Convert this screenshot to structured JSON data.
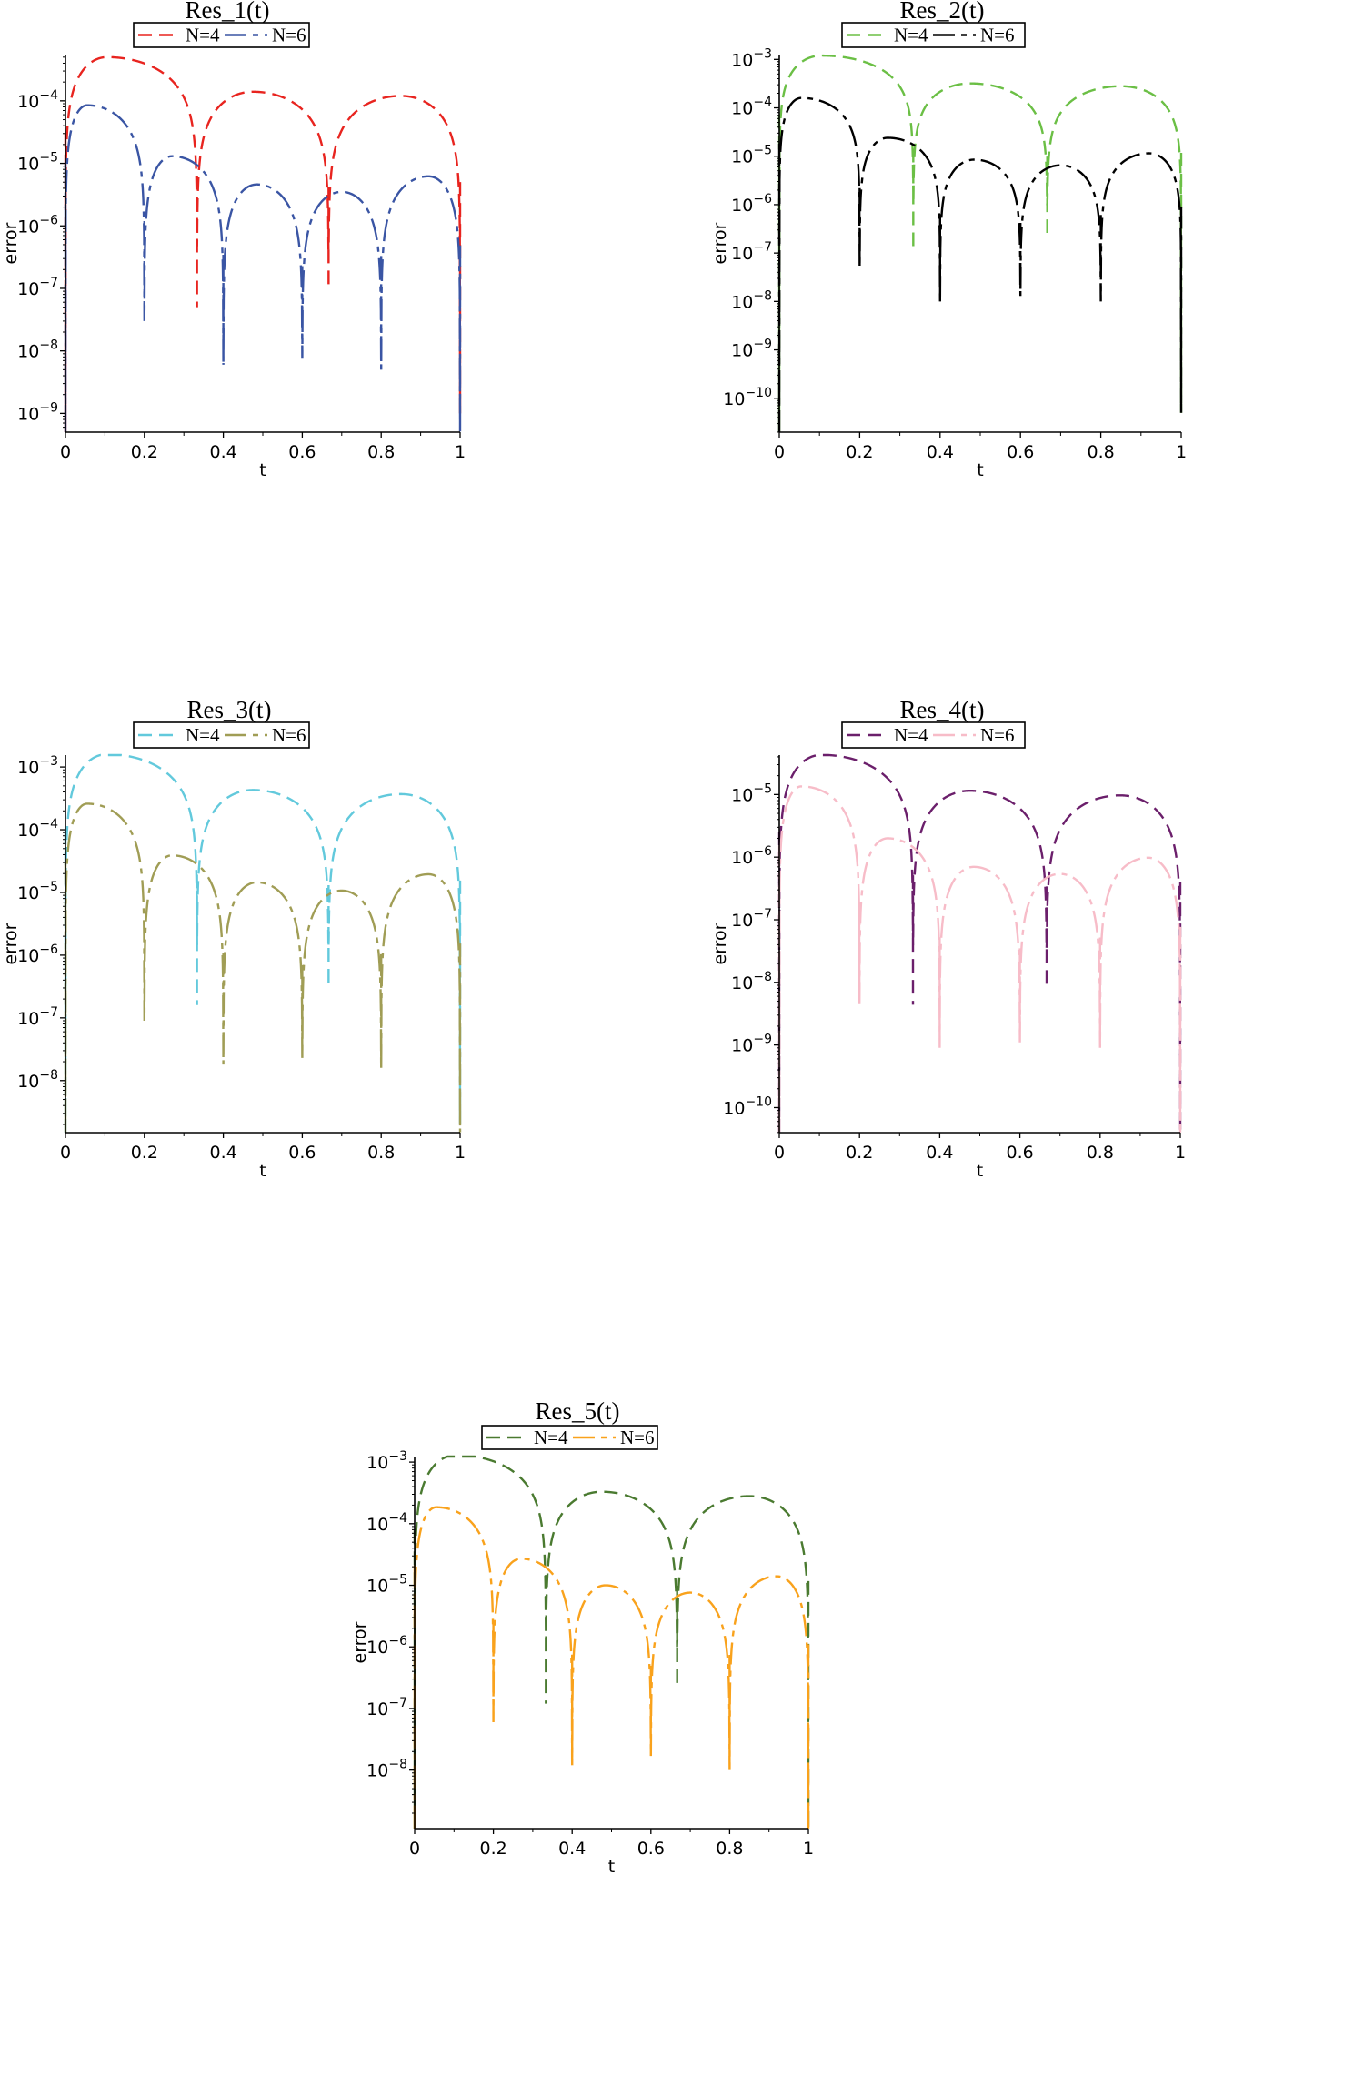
{
  "chart_data": [
    {
      "type": "line",
      "title": "Res_1(t)",
      "xlabel": "t",
      "ylabel": "error",
      "yscale": "log",
      "xlim": [
        0,
        1
      ],
      "ylim": [
        5e-10,
        0.00055
      ],
      "xticks": [
        "0",
        "0.2",
        "0.4",
        "0.6",
        "0.8",
        "1"
      ],
      "yticks_exponents": [
        "-4",
        "-5",
        "-6",
        "-7",
        "-8",
        "-9"
      ],
      "legend_position": "top-center",
      "series": [
        {
          "name": "N=4",
          "color": "#e8241f",
          "style": "dash",
          "zeros": [
            [
              0,
              5e-10
            ],
            [
              0.3333,
              5e-08
            ],
            [
              0.6667,
              1e-07
            ],
            [
              1,
              1e-09
            ]
          ],
          "peaks": [
            [
              0.105,
              0.0005
            ],
            [
              0.475,
              0.00014
            ],
            [
              0.85,
              0.00012
            ]
          ]
        },
        {
          "name": "N=6",
          "color": "#3a55a4",
          "style": "dash-dot",
          "zeros": [
            [
              0,
              5e-10
            ],
            [
              0.2,
              3e-08
            ],
            [
              0.4,
              6e-09
            ],
            [
              0.6,
              7.5e-09
            ],
            [
              0.8,
              5e-09
            ],
            [
              1,
              5e-10
            ]
          ],
          "peaks": [
            [
              0.055,
              8.5e-05
            ],
            [
              0.27,
              1.3e-05
            ],
            [
              0.485,
              4.6e-06
            ],
            [
              0.7,
              3.5e-06
            ],
            [
              0.92,
              6.2e-06
            ]
          ]
        }
      ]
    },
    {
      "type": "line",
      "title": "Res_2(t)",
      "xlabel": "t",
      "ylabel": "error",
      "yscale": "log",
      "xlim": [
        0,
        1
      ],
      "ylim": [
        2e-11,
        0.0013
      ],
      "xticks": [
        "0",
        "0.2",
        "0.4",
        "0.6",
        "0.8",
        "1"
      ],
      "yticks_exponents": [
        "-3",
        "-4",
        "-5",
        "-6",
        "-7",
        "-8",
        "-9",
        "-10"
      ],
      "legend_position": "top-center",
      "series": [
        {
          "name": "N=4",
          "color": "#6bbf45",
          "style": "dash",
          "zeros": [
            [
              0,
              2e-11
            ],
            [
              0.3333,
              1.3e-07
            ],
            [
              0.6667,
              2.6e-07
            ],
            [
              1,
              5e-11
            ]
          ],
          "peaks": [
            [
              0.105,
              0.0012
            ],
            [
              0.475,
              0.00032
            ],
            [
              0.85,
              0.00028
            ]
          ]
        },
        {
          "name": "N=6",
          "color": "#000000",
          "style": "dash-dot",
          "zeros": [
            [
              0,
              2e-11
            ],
            [
              0.2,
              5e-08
            ],
            [
              0.4,
              1e-08
            ],
            [
              0.6,
              1.3e-08
            ],
            [
              0.8,
              1e-08
            ],
            [
              1,
              5e-11
            ]
          ],
          "peaks": [
            [
              0.055,
              0.00016
            ],
            [
              0.27,
              2.4e-05
            ],
            [
              0.485,
              8.5e-06
            ],
            [
              0.7,
              6.5e-06
            ],
            [
              0.92,
              1.15e-05
            ]
          ]
        }
      ]
    },
    {
      "type": "line",
      "title": "Res_3(t)",
      "xlabel": "t",
      "ylabel": "error",
      "yscale": "log",
      "xlim": [
        0,
        1
      ],
      "ylim": [
        1.5e-09,
        0.0017
      ],
      "xticks": [
        "0",
        "0.2",
        "0.4",
        "0.6",
        "0.8",
        "1"
      ],
      "yticks_exponents": [
        "-3",
        "-4",
        "-5",
        "-6",
        "-7",
        "-8"
      ],
      "legend_position": "top-center",
      "series": [
        {
          "name": "N=4",
          "color": "#62c9dc",
          "style": "dash",
          "zeros": [
            [
              0,
              1e-09
            ],
            [
              0.3333,
              1.6e-07
            ],
            [
              0.6667,
              3.6e-07
            ],
            [
              1,
              2e-09
            ]
          ],
          "peaks": [
            [
              0.105,
              0.0016
            ],
            [
              0.475,
              0.00043
            ],
            [
              0.85,
              0.00037
            ]
          ]
        },
        {
          "name": "N=6",
          "color": "#a09d55",
          "style": "dash-dot",
          "zeros": [
            [
              0,
              1.5e-09
            ],
            [
              0.2,
              9e-08
            ],
            [
              0.4,
              1.8e-08
            ],
            [
              0.6,
              2.3e-08
            ],
            [
              0.8,
              1.6e-08
            ],
            [
              1,
              1.5e-09
            ]
          ],
          "peaks": [
            [
              0.055,
              0.00026
            ],
            [
              0.27,
              3.9e-05
            ],
            [
              0.485,
              1.45e-05
            ],
            [
              0.7,
              1.07e-05
            ],
            [
              0.92,
              1.95e-05
            ]
          ]
        }
      ]
    },
    {
      "type": "line",
      "title": "Res_4(t)",
      "xlabel": "t",
      "ylabel": "error",
      "yscale": "log",
      "xlim": [
        0,
        1
      ],
      "ylim": [
        4e-11,
        4.5e-05
      ],
      "xticks": [
        "0",
        "0.2",
        "0.4",
        "0.6",
        "0.8",
        "1"
      ],
      "yticks_exponents": [
        "-5",
        "-6",
        "-7",
        "-8",
        "-9",
        "-10"
      ],
      "legend_position": "top-center",
      "series": [
        {
          "name": "N=4",
          "color": "#6b1f6b",
          "style": "dash",
          "zeros": [
            [
              0,
              4e-11
            ],
            [
              0.3333,
              4.4e-09
            ],
            [
              0.6667,
              9e-09
            ],
            [
              1,
              4e-11
            ]
          ],
          "peaks": [
            [
              0.105,
              4.3e-05
            ],
            [
              0.475,
              1.15e-05
            ],
            [
              0.85,
              9.7e-06
            ]
          ]
        },
        {
          "name": "N=6",
          "color": "#f7bcc8",
          "style": "dash-dot",
          "zeros": [
            [
              0,
              4e-11
            ],
            [
              0.2,
              4.5e-09
            ],
            [
              0.4,
              9e-10
            ],
            [
              0.6,
              1.1e-09
            ],
            [
              0.8,
              9e-10
            ],
            [
              1,
              4e-11
            ]
          ],
          "peaks": [
            [
              0.055,
              1.35e-05
            ],
            [
              0.27,
              2e-06
            ],
            [
              0.485,
              7e-07
            ],
            [
              0.7,
              5.4e-07
            ],
            [
              0.92,
              9.8e-07
            ]
          ]
        }
      ]
    },
    {
      "type": "line",
      "title": "Res_5(t)",
      "xlabel": "t",
      "ylabel": "error",
      "yscale": "log",
      "xlim": [
        0,
        1
      ],
      "ylim": [
        1.1e-09,
        0.0013
      ],
      "xticks": [
        "0",
        "0.2",
        "0.4",
        "0.6",
        "0.8",
        "1"
      ],
      "yticks_exponents": [
        "-3",
        "-4",
        "-5",
        "-6",
        "-7",
        "-8"
      ],
      "legend_position": "top-center",
      "series": [
        {
          "name": "N=4",
          "color": "#4a7a30",
          "style": "dash",
          "zeros": [
            [
              0,
              1.1e-09
            ],
            [
              0.3333,
              1.2e-07
            ],
            [
              0.6667,
              2.6e-07
            ],
            [
              1,
              1.1e-09
            ]
          ],
          "peaks": [
            [
              0.105,
              0.0013
            ],
            [
              0.475,
              0.00033
            ],
            [
              0.85,
              0.00028
            ]
          ]
        },
        {
          "name": "N=6",
          "color": "#f9a21c",
          "style": "dash-dot",
          "zeros": [
            [
              0,
              1.1e-09
            ],
            [
              0.2,
              6e-08
            ],
            [
              0.4,
              1.2e-08
            ],
            [
              0.6,
              1.7e-08
            ],
            [
              0.8,
              1e-08
            ],
            [
              1,
              1.1e-09
            ]
          ],
          "peaks": [
            [
              0.055,
              0.000185
            ],
            [
              0.27,
              2.7e-05
            ],
            [
              0.485,
              1e-05
            ],
            [
              0.7,
              7.6e-06
            ],
            [
              0.92,
              1.4e-05
            ]
          ]
        }
      ]
    }
  ]
}
